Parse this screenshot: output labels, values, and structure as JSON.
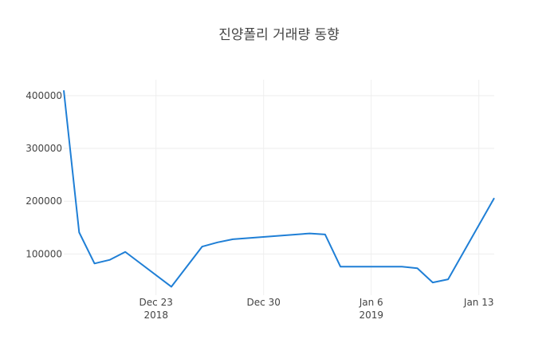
{
  "chart_data": {
    "type": "line",
    "title": "진양폴리 거래량 동향",
    "xlabel": "",
    "ylabel": "",
    "x": [
      "2018-12-17",
      "2018-12-18",
      "2018-12-19",
      "2018-12-20",
      "2018-12-21",
      "2018-12-24",
      "2018-12-26",
      "2018-12-27",
      "2018-12-28",
      "2019-01-02",
      "2019-01-03",
      "2019-01-04",
      "2019-01-07",
      "2019-01-08",
      "2019-01-09",
      "2019-01-10",
      "2019-01-11",
      "2019-01-14"
    ],
    "series": [
      {
        "values": [
          410000,
          141000,
          82000,
          89000,
          104000,
          38000,
          114000,
          122000,
          128000,
          139000,
          137000,
          76000,
          76000,
          76000,
          73000,
          46000,
          52000,
          206000
        ],
        "color": "#1f7fd6"
      }
    ],
    "xlim": [
      "2018-12-17",
      "2019-01-14"
    ],
    "ylim": [
      22000,
      430000
    ],
    "x_ticks": [
      {
        "date": "2018-12-23",
        "label": "Dec 23",
        "year": "2018"
      },
      {
        "date": "2018-12-30",
        "label": "Dec 30",
        "year": ""
      },
      {
        "date": "2019-01-06",
        "label": "Jan 6",
        "year": "2019"
      },
      {
        "date": "2019-01-13",
        "label": "Jan 13",
        "year": ""
      }
    ],
    "y_ticks": [
      {
        "value": 100000,
        "label": "100000"
      },
      {
        "value": 200000,
        "label": "200000"
      },
      {
        "value": 300000,
        "label": "300000"
      },
      {
        "value": 400000,
        "label": "400000"
      }
    ],
    "grid": true,
    "legend": "none"
  }
}
